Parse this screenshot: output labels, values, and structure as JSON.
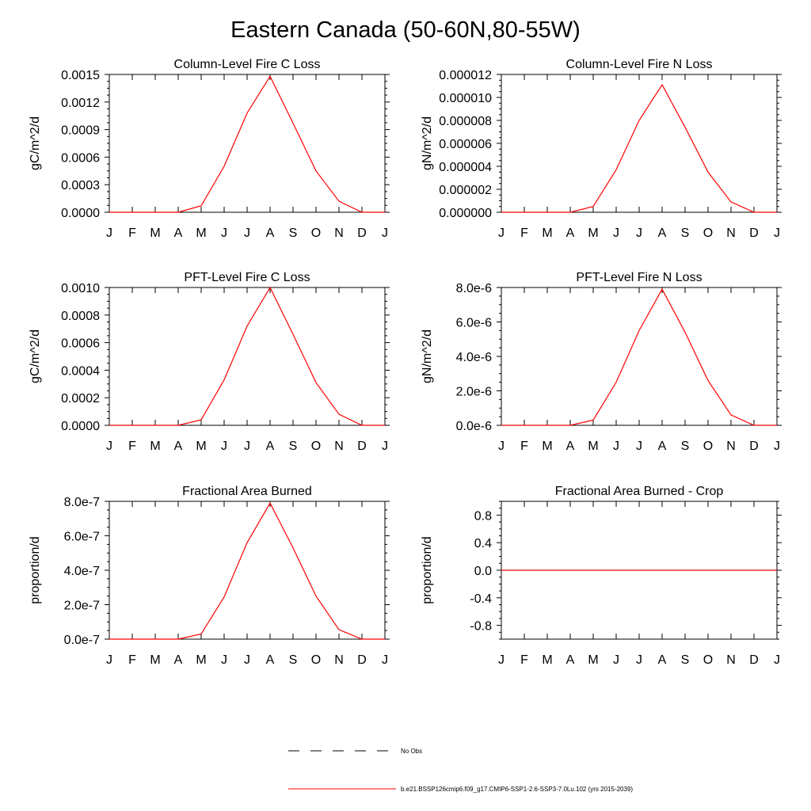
{
  "title": "Eastern Canada (50-60N,80-55W)",
  "legend": {
    "obs_label": "No Obs",
    "model_label": "b.e21.BSSP126cmip6.f09_g17.CMIP6-SSP1-2.6-SSP3-7.0Lu.102 (yrs 2015-2039)",
    "obs_color": "#000000",
    "model_color": "#ff0000"
  },
  "chart_data": [
    {
      "type": "line",
      "title": "Column-Level Fire C Loss",
      "ylabel": "gC/m^2/d",
      "categories": [
        "J",
        "F",
        "M",
        "A",
        "M",
        "J",
        "J",
        "A",
        "S",
        "O",
        "N",
        "D",
        "J"
      ],
      "ylim": [
        0,
        0.0015
      ],
      "yticks": [
        0,
        0.0003,
        0.0006,
        0.0009,
        0.0012,
        0.0015
      ],
      "ytick_labels": [
        "0.0000",
        "0.0003",
        "0.0006",
        "0.0009",
        "0.0012",
        "0.0015"
      ],
      "series": [
        {
          "values": [
            0,
            0,
            0,
            0,
            7e-05,
            0.0005,
            0.00108,
            0.00148,
            0.00097,
            0.00045,
            0.00012,
            0,
            0
          ]
        }
      ]
    },
    {
      "type": "line",
      "title": "Column-Level Fire N Loss",
      "ylabel": "gN/m^2/d",
      "categories": [
        "J",
        "F",
        "M",
        "A",
        "M",
        "J",
        "J",
        "A",
        "S",
        "O",
        "N",
        "D",
        "J"
      ],
      "ylim": [
        0,
        1.2e-05
      ],
      "yticks": [
        0,
        2e-06,
        4e-06,
        6e-06,
        8e-06,
        1e-05,
        1.2e-05
      ],
      "ytick_labels": [
        "0.000000",
        "0.000002",
        "0.000004",
        "0.000006",
        "0.000008",
        "0.000010",
        "0.000012"
      ],
      "series": [
        {
          "values": [
            0,
            0,
            0,
            0,
            5e-07,
            3.7e-06,
            8e-06,
            1.11e-05,
            7.4e-06,
            3.5e-06,
            9e-07,
            0,
            0
          ]
        }
      ]
    },
    {
      "type": "line",
      "title": "PFT-Level Fire C Loss",
      "ylabel": "gC/m^2/d",
      "categories": [
        "J",
        "F",
        "M",
        "A",
        "M",
        "J",
        "J",
        "A",
        "S",
        "O",
        "N",
        "D",
        "J"
      ],
      "ylim": [
        0,
        0.001
      ],
      "yticks": [
        0,
        0.0002,
        0.0004,
        0.0006,
        0.0008,
        0.001
      ],
      "ytick_labels": [
        "0.0000",
        "0.0002",
        "0.0004",
        "0.0006",
        "0.0008",
        "0.0010"
      ],
      "series": [
        {
          "values": [
            0,
            0,
            0,
            0,
            4e-05,
            0.00033,
            0.00072,
            0.001,
            0.00066,
            0.00031,
            8e-05,
            0,
            0
          ]
        }
      ]
    },
    {
      "type": "line",
      "title": "PFT-Level Fire N Loss",
      "ylabel": "gN/m^2/d",
      "categories": [
        "J",
        "F",
        "M",
        "A",
        "M",
        "J",
        "J",
        "A",
        "S",
        "O",
        "N",
        "D",
        "J"
      ],
      "ylim": [
        0,
        8e-06
      ],
      "yticks": [
        0,
        2e-06,
        4e-06,
        6e-06,
        8e-06
      ],
      "ytick_labels": [
        "0.0e-6",
        "2.0e-6",
        "4.0e-6",
        "6.0e-6",
        "8.0e-6"
      ],
      "series": [
        {
          "values": [
            0,
            0,
            0,
            0,
            3e-07,
            2.5e-06,
            5.5e-06,
            7.9e-06,
            5.4e-06,
            2.6e-06,
            6e-07,
            0,
            0
          ]
        }
      ]
    },
    {
      "type": "line",
      "title": "Fractional Area Burned",
      "ylabel": "proportion/d",
      "categories": [
        "J",
        "F",
        "M",
        "A",
        "M",
        "J",
        "J",
        "A",
        "S",
        "O",
        "N",
        "D",
        "J"
      ],
      "ylim": [
        0,
        8e-07
      ],
      "yticks": [
        0,
        2e-07,
        4e-07,
        6e-07,
        8e-07
      ],
      "ytick_labels": [
        "0.0e-7",
        "2.0e-7",
        "4.0e-7",
        "6.0e-7",
        "8.0e-7"
      ],
      "series": [
        {
          "values": [
            0,
            0,
            0,
            0,
            3e-08,
            2.45e-07,
            5.6e-07,
            7.9e-07,
            5.3e-07,
            2.5e-07,
            5.5e-08,
            0,
            0
          ]
        }
      ]
    },
    {
      "type": "line",
      "title": "Fractional Area Burned - Crop",
      "ylabel": "proportion/d",
      "categories": [
        "J",
        "F",
        "M",
        "A",
        "M",
        "J",
        "J",
        "A",
        "S",
        "O",
        "N",
        "D",
        "J"
      ],
      "ylim": [
        -1,
        1
      ],
      "yticks": [
        -0.8,
        -0.4,
        0,
        0.4,
        0.8
      ],
      "ytick_labels": [
        "-0.8",
        "-0.4",
        "0.0",
        "0.4",
        "0.8"
      ],
      "series": [
        {
          "values": [
            0,
            0,
            0,
            0,
            0,
            0,
            0,
            0,
            0,
            0,
            0,
            0,
            0
          ]
        }
      ]
    }
  ]
}
